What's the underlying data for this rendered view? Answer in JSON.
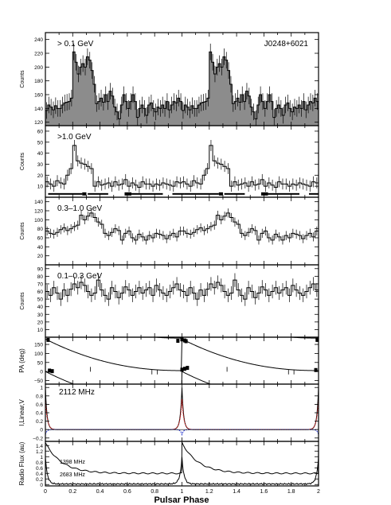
{
  "figure": {
    "xlabel": "Pulsar Phase",
    "xticks": [
      "0",
      "0.2",
      "0.4",
      "0.6",
      "0.8",
      "1",
      "1.2",
      "1.4",
      "1.6",
      "1.8",
      "2"
    ]
  },
  "chart_data": [
    {
      "type": "bar",
      "panel": "gt0.1",
      "label": "> 0.1 GeV",
      "label2": "J0248+6021",
      "ylabel": "Counts",
      "xlim": [
        0,
        2
      ],
      "ylim": [
        115,
        250
      ],
      "yticks": [
        120,
        140,
        160,
        180,
        200,
        220,
        240
      ],
      "filled": true,
      "values": [
        137,
        145,
        142,
        138,
        144,
        140,
        140,
        145,
        148,
        149,
        150,
        155,
        222,
        207,
        190,
        200,
        205,
        200,
        215,
        210,
        195,
        175,
        147,
        150,
        155,
        149,
        160,
        150,
        165,
        158,
        142,
        135,
        125,
        145,
        160,
        150,
        140,
        150,
        160,
        150,
        127,
        140,
        145,
        140,
        130,
        145,
        148,
        140,
        135,
        142,
        140,
        145,
        140,
        150,
        138,
        145,
        150,
        148,
        155,
        150,
        137,
        145,
        142,
        138,
        144,
        140,
        140,
        145,
        148,
        149,
        150,
        155,
        222,
        207,
        190,
        200,
        205,
        200,
        215,
        210,
        195,
        175,
        147,
        150,
        155,
        149,
        160,
        150,
        165,
        158,
        142,
        135,
        125,
        145,
        160,
        150,
        140,
        150,
        160,
        150,
        127,
        140,
        145,
        140,
        130,
        145,
        148,
        140,
        135,
        142,
        140,
        145,
        140,
        150,
        138,
        145,
        150,
        148,
        155,
        150
      ],
      "errors": 12
    },
    {
      "type": "line",
      "panel": "gt1.0",
      "label": ">1.0 GeV",
      "ylabel": "Counts",
      "xlim": [
        0,
        2
      ],
      "ylim": [
        0,
        65
      ],
      "yticks": [
        10,
        20,
        30,
        40,
        50,
        60
      ],
      "values": [
        14,
        12,
        10,
        15,
        13,
        12,
        20,
        26,
        47,
        33,
        31,
        30,
        28,
        26,
        10,
        14,
        11,
        12,
        13,
        10,
        14,
        11,
        12,
        16,
        10,
        13,
        11,
        9,
        14,
        12,
        12,
        10,
        12,
        11,
        13,
        12,
        11,
        10,
        14,
        13,
        14,
        12,
        10,
        15,
        13,
        12,
        20,
        26,
        47,
        33,
        31,
        30,
        28,
        26,
        10,
        14,
        11,
        12,
        13,
        10,
        14,
        11,
        12,
        16,
        10,
        13,
        11,
        9,
        14,
        12,
        12,
        10,
        12,
        11,
        13,
        12,
        11,
        10,
        14,
        13
      ],
      "errors": 5,
      "offpulse_bars": [
        [
          0.02,
          0.27,
          "thin"
        ],
        [
          0.27,
          0.3,
          "thick"
        ],
        [
          0.31,
          0.46,
          "thin"
        ],
        [
          0.58,
          0.63,
          "thick"
        ],
        [
          0.63,
          0.86,
          "thin"
        ],
        [
          0.93,
          1.02,
          "thin"
        ],
        [
          1.02,
          1.27,
          "thin"
        ],
        [
          1.27,
          1.3,
          "thick"
        ],
        [
          1.31,
          1.46,
          "thin"
        ],
        [
          1.58,
          1.63,
          "thick"
        ],
        [
          1.63,
          1.86,
          "thin"
        ],
        [
          1.93,
          2.0,
          "thin"
        ]
      ]
    },
    {
      "type": "line",
      "panel": "0.3-1.0",
      "label": "0.3–1.0 GeV",
      "ylabel": "Counts",
      "xlim": [
        0,
        2
      ],
      "ylim": [
        0,
        150
      ],
      "yticks": [
        20,
        40,
        60,
        80,
        100,
        120,
        140
      ],
      "values": [
        75,
        70,
        68,
        72,
        78,
        82,
        76,
        80,
        85,
        88,
        110,
        100,
        108,
        115,
        105,
        95,
        90,
        70,
        65,
        72,
        80,
        76,
        55,
        70,
        75,
        60,
        55,
        68,
        62,
        55,
        65,
        60,
        70,
        68,
        65,
        58,
        65,
        70,
        62,
        75,
        75,
        70,
        68,
        72,
        78,
        82,
        76,
        80,
        85,
        88,
        110,
        100,
        108,
        115,
        105,
        95,
        90,
        70,
        65,
        72,
        80,
        76,
        55,
        70,
        75,
        60,
        55,
        68,
        62,
        55,
        65,
        60,
        70,
        68,
        65,
        58,
        65,
        70,
        62,
        75
      ],
      "errors": 10
    },
    {
      "type": "line",
      "panel": "0.1-0.3",
      "label": "0.1–0.3 GeV",
      "ylabel": "Counts",
      "xlim": [
        0,
        2
      ],
      "ylim": [
        0,
        95
      ],
      "yticks": [
        10,
        20,
        30,
        40,
        50,
        60,
        70,
        80,
        90
      ],
      "values": [
        60,
        55,
        65,
        58,
        50,
        62,
        55,
        63,
        70,
        65,
        72,
        68,
        60,
        55,
        58,
        75,
        62,
        55,
        50,
        65,
        60,
        52,
        58,
        66,
        62,
        55,
        60,
        65,
        58,
        62,
        65,
        55,
        68,
        62,
        58,
        55,
        60,
        65,
        70,
        62,
        60,
        55,
        65,
        58,
        50,
        62,
        55,
        63,
        70,
        65,
        72,
        68,
        60,
        55,
        58,
        75,
        62,
        55,
        50,
        65,
        60,
        52,
        58,
        66,
        62,
        55,
        60,
        65,
        58,
        62,
        65,
        55,
        68,
        62,
        58,
        55,
        60,
        65,
        70,
        62
      ],
      "errors": 9
    },
    {
      "type": "scatter",
      "panel": "PA",
      "ylabel": "PA (deg)",
      "xlim": [
        0,
        2
      ],
      "ylim": [
        -70,
        190
      ],
      "yticks": [
        -50,
        0,
        50,
        100,
        150
      ],
      "ytick_labels": [
        "−50",
        "0",
        "50",
        "100",
        "150"
      ]
    },
    {
      "type": "line",
      "panel": "pol",
      "label": "2112 MHz",
      "ylabel": "I,Linear,V",
      "xlim": [
        0,
        2
      ],
      "ylim": [
        -0.28,
        1.08
      ],
      "yticks": [
        -0.2,
        0,
        0.2,
        0.4,
        0.6,
        0.8,
        1
      ],
      "ytick_labels": [
        "−0.2",
        "0",
        "0.2",
        "0.4",
        "0.6",
        "0.8",
        "1"
      ],
      "colors": {
        "I": "#000000",
        "L": "#cc2222",
        "V": "#2233cc"
      }
    },
    {
      "type": "line",
      "panel": "radio",
      "ylabel": "Radio Flux (au)",
      "xlim": [
        0,
        2
      ],
      "ylim": [
        -0.05,
        1.55
      ],
      "yticks": [
        0,
        0.2,
        0.4,
        0.6,
        0.8,
        1,
        1.2,
        1.4
      ],
      "series": [
        {
          "name": "1398 MHz"
        },
        {
          "name": "2683 MHz"
        }
      ]
    }
  ]
}
